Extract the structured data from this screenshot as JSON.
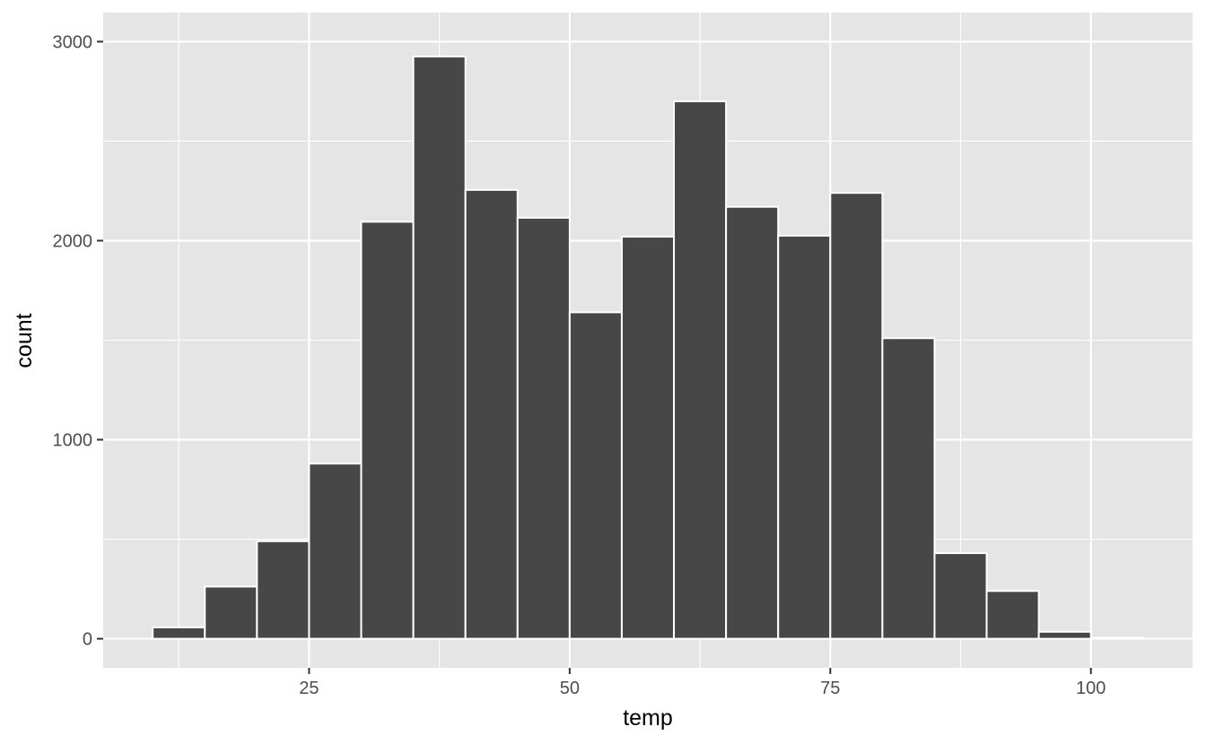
{
  "chart_data": {
    "type": "bar",
    "subtype": "histogram",
    "title": "",
    "xlabel": "temp",
    "ylabel": "count",
    "bin_width": 5,
    "bin_starts": [
      10,
      15,
      20,
      25,
      30,
      35,
      40,
      45,
      50,
      55,
      60,
      65,
      70,
      75,
      80,
      85,
      90,
      95,
      100
    ],
    "values": [
      57,
      262,
      490,
      880,
      2095,
      2925,
      2255,
      2115,
      1640,
      2020,
      2700,
      2170,
      2025,
      2240,
      1510,
      430,
      240,
      35,
      5
    ],
    "xlim": [
      5.25,
      109.75
    ],
    "ylim": [
      -146,
      3146
    ],
    "x_ticks": [
      25,
      50,
      75,
      100
    ],
    "x_minor_ticks": [
      12.5,
      37.5,
      62.5,
      87.5
    ],
    "y_ticks": [
      0,
      1000,
      2000,
      3000
    ],
    "y_minor_ticks": [
      500,
      1500,
      2500
    ],
    "grid": true,
    "legend": "none",
    "colors": {
      "bar_fill": "#474747",
      "bar_stroke": "#ffffff",
      "panel_bg": "#e5e5e5",
      "grid": "#ffffff",
      "tick_text": "#4d4d4d",
      "axis_title": "#000000"
    }
  }
}
